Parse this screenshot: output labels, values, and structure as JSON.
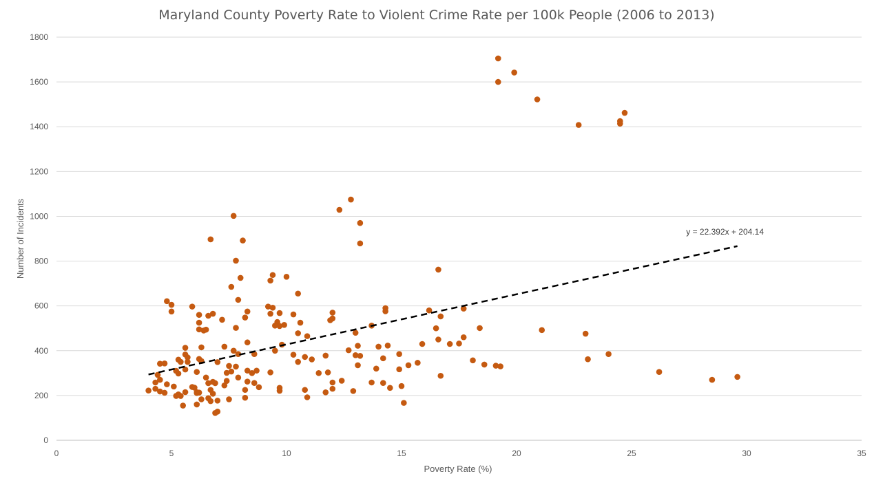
{
  "chart_data": {
    "type": "scatter",
    "title": "Maryland County Poverty Rate to Violent Crime Rate per 100k People (2006 to 2013)",
    "xlabel": "Poverty Rate (%)",
    "ylabel": "Number of Incidents",
    "xlim": [
      0,
      35
    ],
    "ylim": [
      0,
      1800
    ],
    "x_ticks": [
      0,
      5,
      10,
      15,
      20,
      25,
      30,
      35
    ],
    "y_ticks": [
      0,
      200,
      400,
      600,
      800,
      1000,
      1200,
      1400,
      1600,
      1800
    ],
    "grid": "horizontal",
    "marker_color": "#C55A11",
    "trendline": {
      "slope": 22.392,
      "intercept": 204.14,
      "x_range": [
        4.0,
        29.6
      ],
      "label": "y = 22.392x + 204.14",
      "color": "#000000",
      "style": "dashed"
    },
    "points": [
      [
        19.2,
        1705
      ],
      [
        19.9,
        1642
      ],
      [
        19.2,
        1600
      ],
      [
        20.9,
        1522
      ],
      [
        24.7,
        1462
      ],
      [
        24.5,
        1425
      ],
      [
        24.5,
        1414
      ],
      [
        22.7,
        1408
      ],
      [
        12.8,
        1075
      ],
      [
        12.3,
        1029
      ],
      [
        7.7,
        1002
      ],
      [
        13.2,
        970
      ],
      [
        6.7,
        897
      ],
      [
        8.1,
        892
      ],
      [
        13.2,
        879
      ],
      [
        7.8,
        802
      ],
      [
        16.6,
        762
      ],
      [
        9.4,
        738
      ],
      [
        10.0,
        730
      ],
      [
        8.0,
        725
      ],
      [
        9.3,
        713
      ],
      [
        7.6,
        685
      ],
      [
        10.5,
        655
      ],
      [
        7.9,
        627
      ],
      [
        4.8,
        621
      ],
      [
        5.0,
        605
      ],
      [
        5.9,
        597
      ],
      [
        9.2,
        597
      ],
      [
        9.4,
        592
      ],
      [
        14.3,
        590
      ],
      [
        17.7,
        588
      ],
      [
        16.2,
        580
      ],
      [
        5.0,
        575
      ],
      [
        8.3,
        575
      ],
      [
        14.3,
        576
      ],
      [
        12.0,
        570
      ],
      [
        6.8,
        565
      ],
      [
        9.7,
        568
      ],
      [
        9.3,
        565
      ],
      [
        10.3,
        562
      ],
      [
        6.2,
        560
      ],
      [
        6.6,
        556
      ],
      [
        16.7,
        553
      ],
      [
        8.2,
        548
      ],
      [
        12.0,
        544
      ],
      [
        11.9,
        536
      ],
      [
        7.2,
        538
      ],
      [
        9.6,
        528
      ],
      [
        6.2,
        525
      ],
      [
        10.6,
        525
      ],
      [
        9.9,
        515
      ],
      [
        9.5,
        512
      ],
      [
        13.7,
        512
      ],
      [
        9.7,
        510
      ],
      [
        7.8,
        502
      ],
      [
        16.5,
        500
      ],
      [
        18.4,
        501
      ],
      [
        6.2,
        495
      ],
      [
        6.5,
        494
      ],
      [
        6.4,
        490
      ],
      [
        21.1,
        492
      ],
      [
        10.5,
        478
      ],
      [
        13.0,
        480
      ],
      [
        23.0,
        476
      ],
      [
        10.9,
        465
      ],
      [
        17.7,
        460
      ],
      [
        16.6,
        450
      ],
      [
        8.3,
        437
      ],
      [
        17.1,
        430
      ],
      [
        17.5,
        432
      ],
      [
        15.9,
        430
      ],
      [
        9.8,
        427
      ],
      [
        13.1,
        422
      ],
      [
        14.4,
        423
      ],
      [
        7.3,
        418
      ],
      [
        14.0,
        418
      ],
      [
        6.3,
        415
      ],
      [
        5.6,
        413
      ],
      [
        9.5,
        400
      ],
      [
        7.7,
        400
      ],
      [
        12.7,
        402
      ],
      [
        14.9,
        385
      ],
      [
        8.6,
        385
      ],
      [
        10.3,
        382
      ],
      [
        5.6,
        383
      ],
      [
        7.9,
        385
      ],
      [
        13.0,
        380
      ],
      [
        11.7,
        378
      ],
      [
        13.2,
        377
      ],
      [
        24.0,
        385
      ],
      [
        5.7,
        370
      ],
      [
        10.8,
        372
      ],
      [
        14.2,
        366
      ],
      [
        6.2,
        363
      ],
      [
        11.1,
        361
      ],
      [
        23.1,
        362
      ],
      [
        5.3,
        360
      ],
      [
        18.1,
        357
      ],
      [
        6.3,
        354
      ],
      [
        5.4,
        350
      ],
      [
        5.7,
        350
      ],
      [
        10.5,
        350
      ],
      [
        7.0,
        349
      ],
      [
        15.7,
        346
      ],
      [
        4.5,
        342
      ],
      [
        4.7,
        343
      ],
      [
        18.6,
        338
      ],
      [
        15.3,
        335
      ],
      [
        13.1,
        335
      ],
      [
        7.5,
        332
      ],
      [
        19.1,
        333
      ],
      [
        7.8,
        329
      ],
      [
        19.3,
        330
      ],
      [
        13.9,
        320
      ],
      [
        14.9,
        317
      ],
      [
        5.6,
        316
      ],
      [
        8.3,
        311
      ],
      [
        8.7,
        311
      ],
      [
        5.2,
        310
      ],
      [
        7.6,
        307
      ],
      [
        6.1,
        305
      ],
      [
        7.4,
        301
      ],
      [
        9.3,
        303
      ],
      [
        11.4,
        300
      ],
      [
        11.8,
        303
      ],
      [
        8.5,
        300
      ],
      [
        26.2,
        305
      ],
      [
        5.3,
        298
      ],
      [
        16.7,
        288
      ],
      [
        4.4,
        292
      ],
      [
        29.6,
        283
      ],
      [
        6.5,
        280
      ],
      [
        7.9,
        280
      ],
      [
        4.5,
        270
      ],
      [
        28.5,
        270
      ],
      [
        12.4,
        266
      ],
      [
        7.4,
        265
      ],
      [
        8.3,
        262
      ],
      [
        6.8,
        261
      ],
      [
        12.0,
        258
      ],
      [
        13.7,
        258
      ],
      [
        14.2,
        256
      ],
      [
        6.9,
        255
      ],
      [
        8.6,
        256
      ],
      [
        4.3,
        258
      ],
      [
        6.6,
        255
      ],
      [
        4.8,
        250
      ],
      [
        7.3,
        245
      ],
      [
        15.0,
        242
      ],
      [
        5.1,
        240
      ],
      [
        5.9,
        238
      ],
      [
        8.8,
        237
      ],
      [
        6.0,
        235
      ],
      [
        14.5,
        234
      ],
      [
        9.7,
        234
      ],
      [
        12.0,
        230
      ],
      [
        4.3,
        230
      ],
      [
        6.7,
        225
      ],
      [
        10.8,
        225
      ],
      [
        8.2,
        225
      ],
      [
        12.9,
        220
      ],
      [
        4.0,
        222
      ],
      [
        9.7,
        221
      ],
      [
        4.5,
        218
      ],
      [
        11.7,
        214
      ],
      [
        5.6,
        215
      ],
      [
        6.1,
        215
      ],
      [
        6.2,
        213
      ],
      [
        4.7,
        212
      ],
      [
        6.1,
        211
      ],
      [
        6.8,
        208
      ],
      [
        5.3,
        205
      ],
      [
        5.2,
        198
      ],
      [
        5.4,
        198
      ],
      [
        10.9,
        192
      ],
      [
        8.2,
        190
      ],
      [
        6.6,
        188
      ],
      [
        7.5,
        183
      ],
      [
        6.7,
        175
      ],
      [
        6.3,
        183
      ],
      [
        7.0,
        177
      ],
      [
        15.1,
        167
      ],
      [
        6.1,
        160
      ],
      [
        5.5,
        155
      ],
      [
        7.0,
        128
      ],
      [
        6.9,
        122
      ]
    ]
  }
}
